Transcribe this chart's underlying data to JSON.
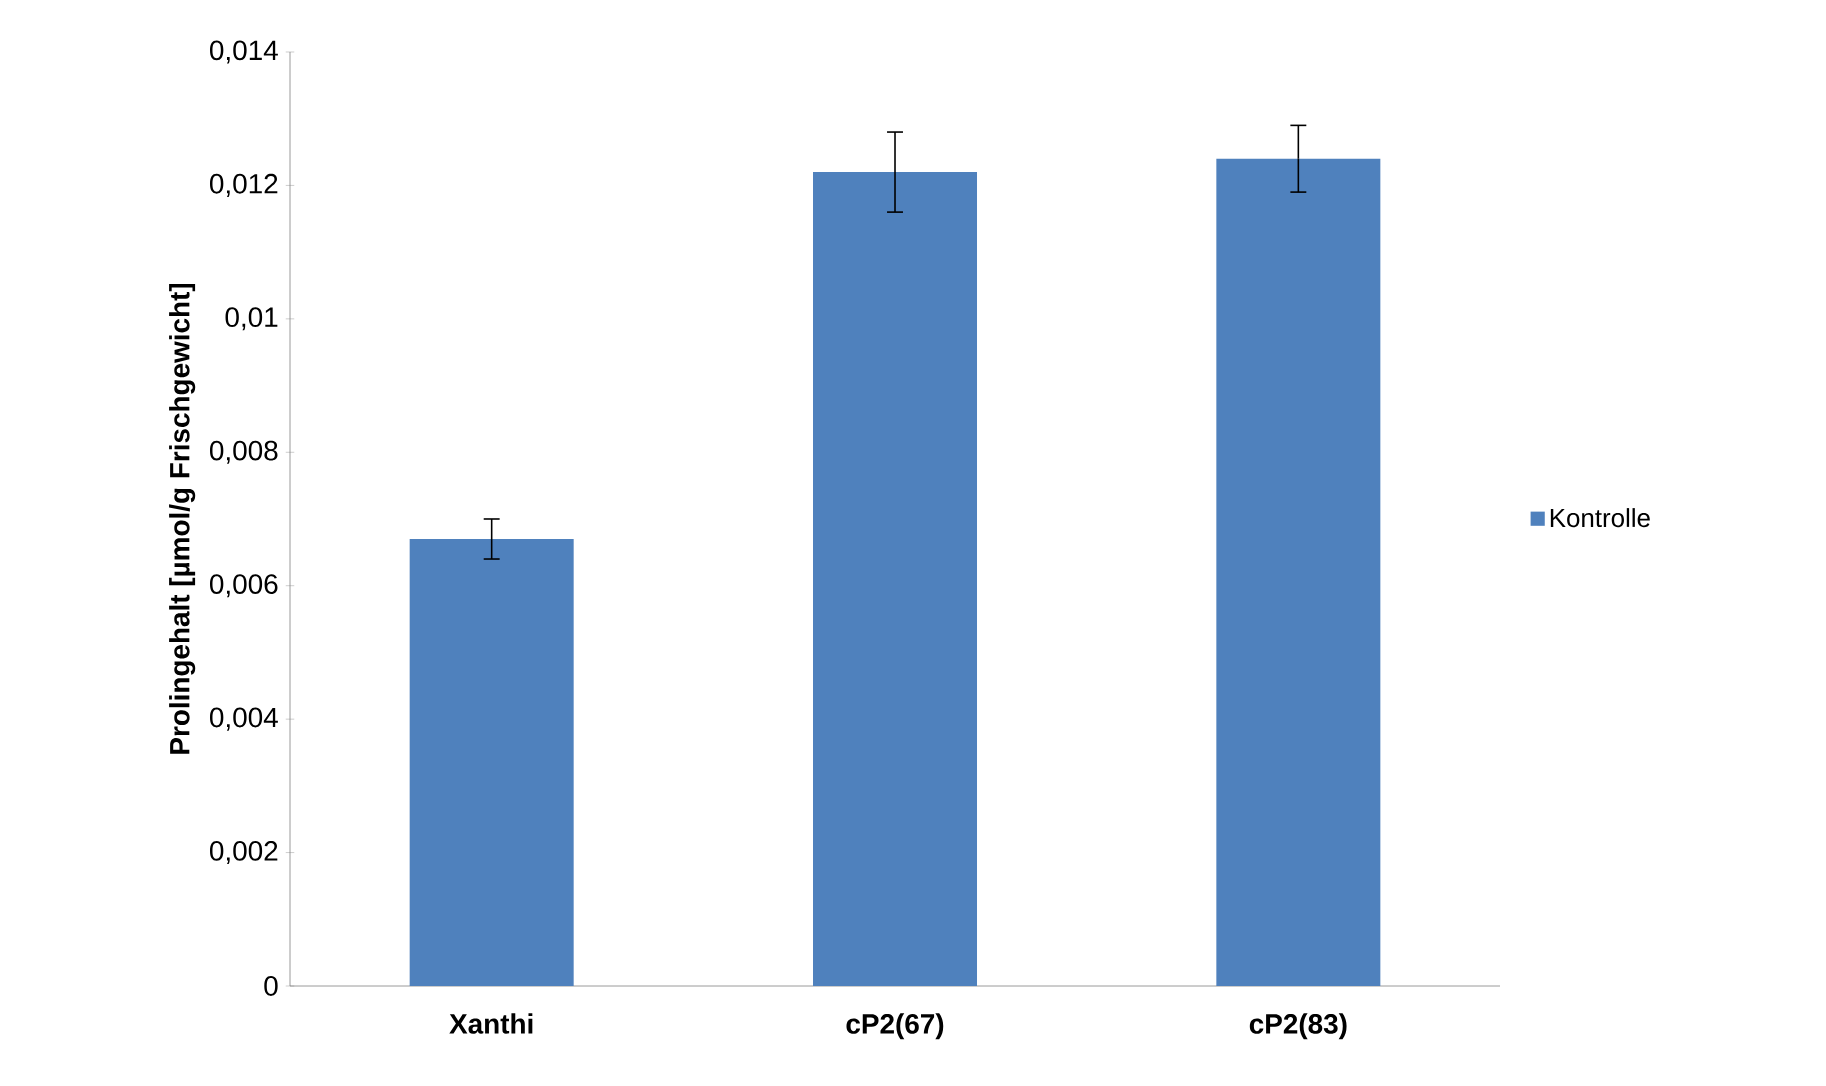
{
  "chart_data": {
    "type": "bar",
    "ylabel": "Prolingehalt [µmol/g Frischgewicht]",
    "categories": [
      "Xanthi",
      "cP2(67)",
      "cP2(83)"
    ],
    "series": [
      {
        "name": "Kontrolle",
        "color": "#4f81bd",
        "values": [
          0.0067,
          0.0122,
          0.0124
        ],
        "errors": [
          0.0003,
          0.0006,
          0.0005
        ]
      }
    ],
    "ylim": [
      0,
      0.014
    ],
    "yticks": [
      0,
      {
        "value": 0.002,
        "label": "0,002"
      },
      {
        "value": 0.004,
        "label": "0,004"
      },
      {
        "value": 0.006,
        "label": "0,006"
      },
      {
        "value": 0.008,
        "label": "0,008"
      },
      {
        "value": 0.01,
        "label": "0,01"
      },
      {
        "value": 0.012,
        "label": "0,012"
      },
      {
        "value": 0.014,
        "label": "0,014"
      }
    ],
    "grid": false,
    "legend": "right"
  }
}
